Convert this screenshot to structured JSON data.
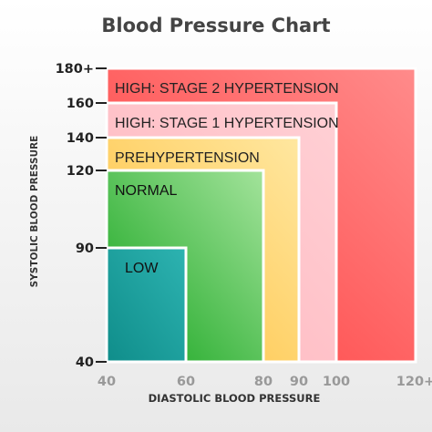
{
  "chart_data": {
    "type": "nested-region",
    "title": "Blood Pressure Chart",
    "xlabel": "DIASTOLIC BLOOD PRESSURE",
    "ylabel": "SYSTOLIC BLOOD PRESSURE",
    "x_ticks": [
      {
        "value": 40,
        "label": "40"
      },
      {
        "value": 60,
        "label": "60"
      },
      {
        "value": 80,
        "label": "80"
      },
      {
        "value": 90,
        "label": "90"
      },
      {
        "value": 100,
        "label": "100"
      },
      {
        "value": 120,
        "label": "120+"
      }
    ],
    "y_ticks": [
      {
        "value": 40,
        "label": "40"
      },
      {
        "value": 90,
        "label": "90"
      },
      {
        "value": 120,
        "label": "120"
      },
      {
        "value": 140,
        "label": "140"
      },
      {
        "value": 160,
        "label": "160"
      },
      {
        "value": 180,
        "label": "180+"
      }
    ],
    "regions": [
      {
        "label": "HIGH: STAGE 2 HYPERTENSION",
        "x_max": 120,
        "y_max": 180,
        "color_from": "#ff3c3c",
        "color_to": "#ff8b8b"
      },
      {
        "label": "HIGH: STAGE 1 HYPERTENSION",
        "x_max": 100,
        "y_max": 160,
        "color_from": "#ffb5bd",
        "color_to": "#ffd0d5"
      },
      {
        "label": "PREHYPERTENSION",
        "x_max": 90,
        "y_max": 140,
        "color_from": "#ffbf3a",
        "color_to": "#ffe7a0"
      },
      {
        "label": "NORMAL",
        "x_max": 80,
        "y_max": 120,
        "color_from": "#12a31b",
        "color_to": "#a3e39b"
      },
      {
        "label": "LOW",
        "x_max": 60,
        "y_max": 90,
        "color_from": "#0f8d8a",
        "color_to": "#2db3b1"
      }
    ]
  }
}
